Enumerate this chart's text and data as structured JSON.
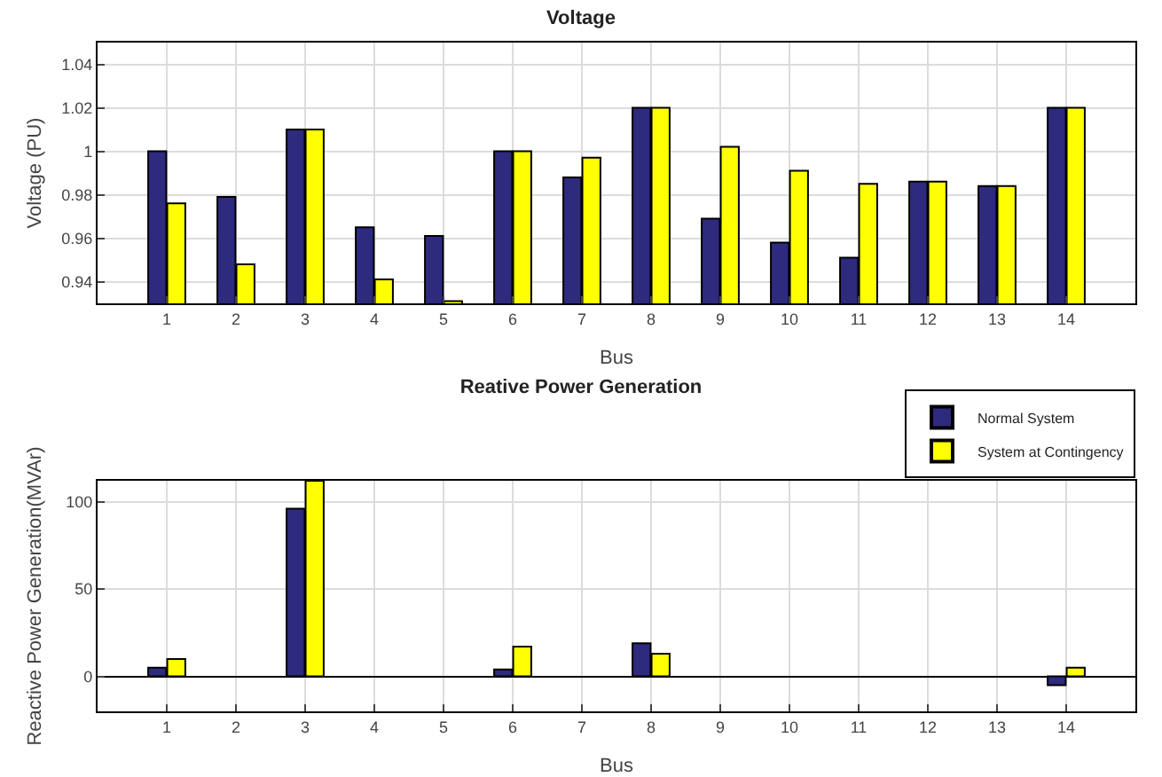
{
  "chart_data": [
    {
      "type": "bar",
      "title": "Voltage",
      "xlabel": "Bus",
      "ylabel": "Voltage (PU)",
      "x": [
        1,
        2,
        3,
        4,
        5,
        6,
        7,
        8,
        9,
        10,
        11,
        12,
        13,
        14
      ],
      "xlim": [
        0,
        15
      ],
      "xticks": [
        1,
        2,
        3,
        4,
        5,
        6,
        7,
        8,
        9,
        10,
        11,
        12,
        13,
        14
      ],
      "ylim": [
        0.93,
        1.05
      ],
      "yticks": [
        0.94,
        0.96,
        0.98,
        {
          "value": 1,
          "label": "1"
        },
        1.02,
        1.04
      ],
      "grid": true,
      "legend": false,
      "series": [
        {
          "color": "#2e2a7e",
          "values": [
            1.0,
            0.979,
            1.01,
            0.965,
            0.961,
            1.0,
            0.988,
            1.02,
            0.969,
            0.958,
            0.951,
            0.986,
            0.984,
            1.02
          ]
        },
        {
          "color": "#ffff00",
          "values": [
            0.976,
            0.948,
            1.01,
            0.941,
            0.931,
            1.0,
            0.997,
            1.02,
            1.002,
            0.991,
            0.985,
            0.986,
            0.984,
            1.02
          ]
        }
      ]
    },
    {
      "type": "bar",
      "title": "Reative Power Generation",
      "xlabel": "Bus",
      "ylabel": "Reactive Power Generation(MVAr)",
      "x": [
        1,
        2,
        3,
        4,
        5,
        6,
        7,
        8,
        9,
        10,
        11,
        12,
        13,
        14
      ],
      "xlim": [
        0,
        15
      ],
      "xticks": [
        1,
        2,
        3,
        4,
        5,
        6,
        7,
        8,
        9,
        10,
        11,
        12,
        13,
        14
      ],
      "ylim": [
        -20,
        112
      ],
      "yticks": [
        0,
        50,
        100
      ],
      "grid": true,
      "legend": "top right",
      "series": [
        {
          "name": "Normal System",
          "color": "#2e2a7e",
          "values": [
            5,
            0,
            96,
            0,
            0,
            4,
            0,
            19,
            0,
            0,
            0,
            0,
            0,
            -5
          ]
        },
        {
          "name": "System at Contingency",
          "color": "#ffff00",
          "values": [
            10,
            0,
            112,
            0,
            0,
            17,
            0,
            13,
            0,
            0,
            0,
            0,
            0,
            5
          ]
        }
      ]
    }
  ]
}
